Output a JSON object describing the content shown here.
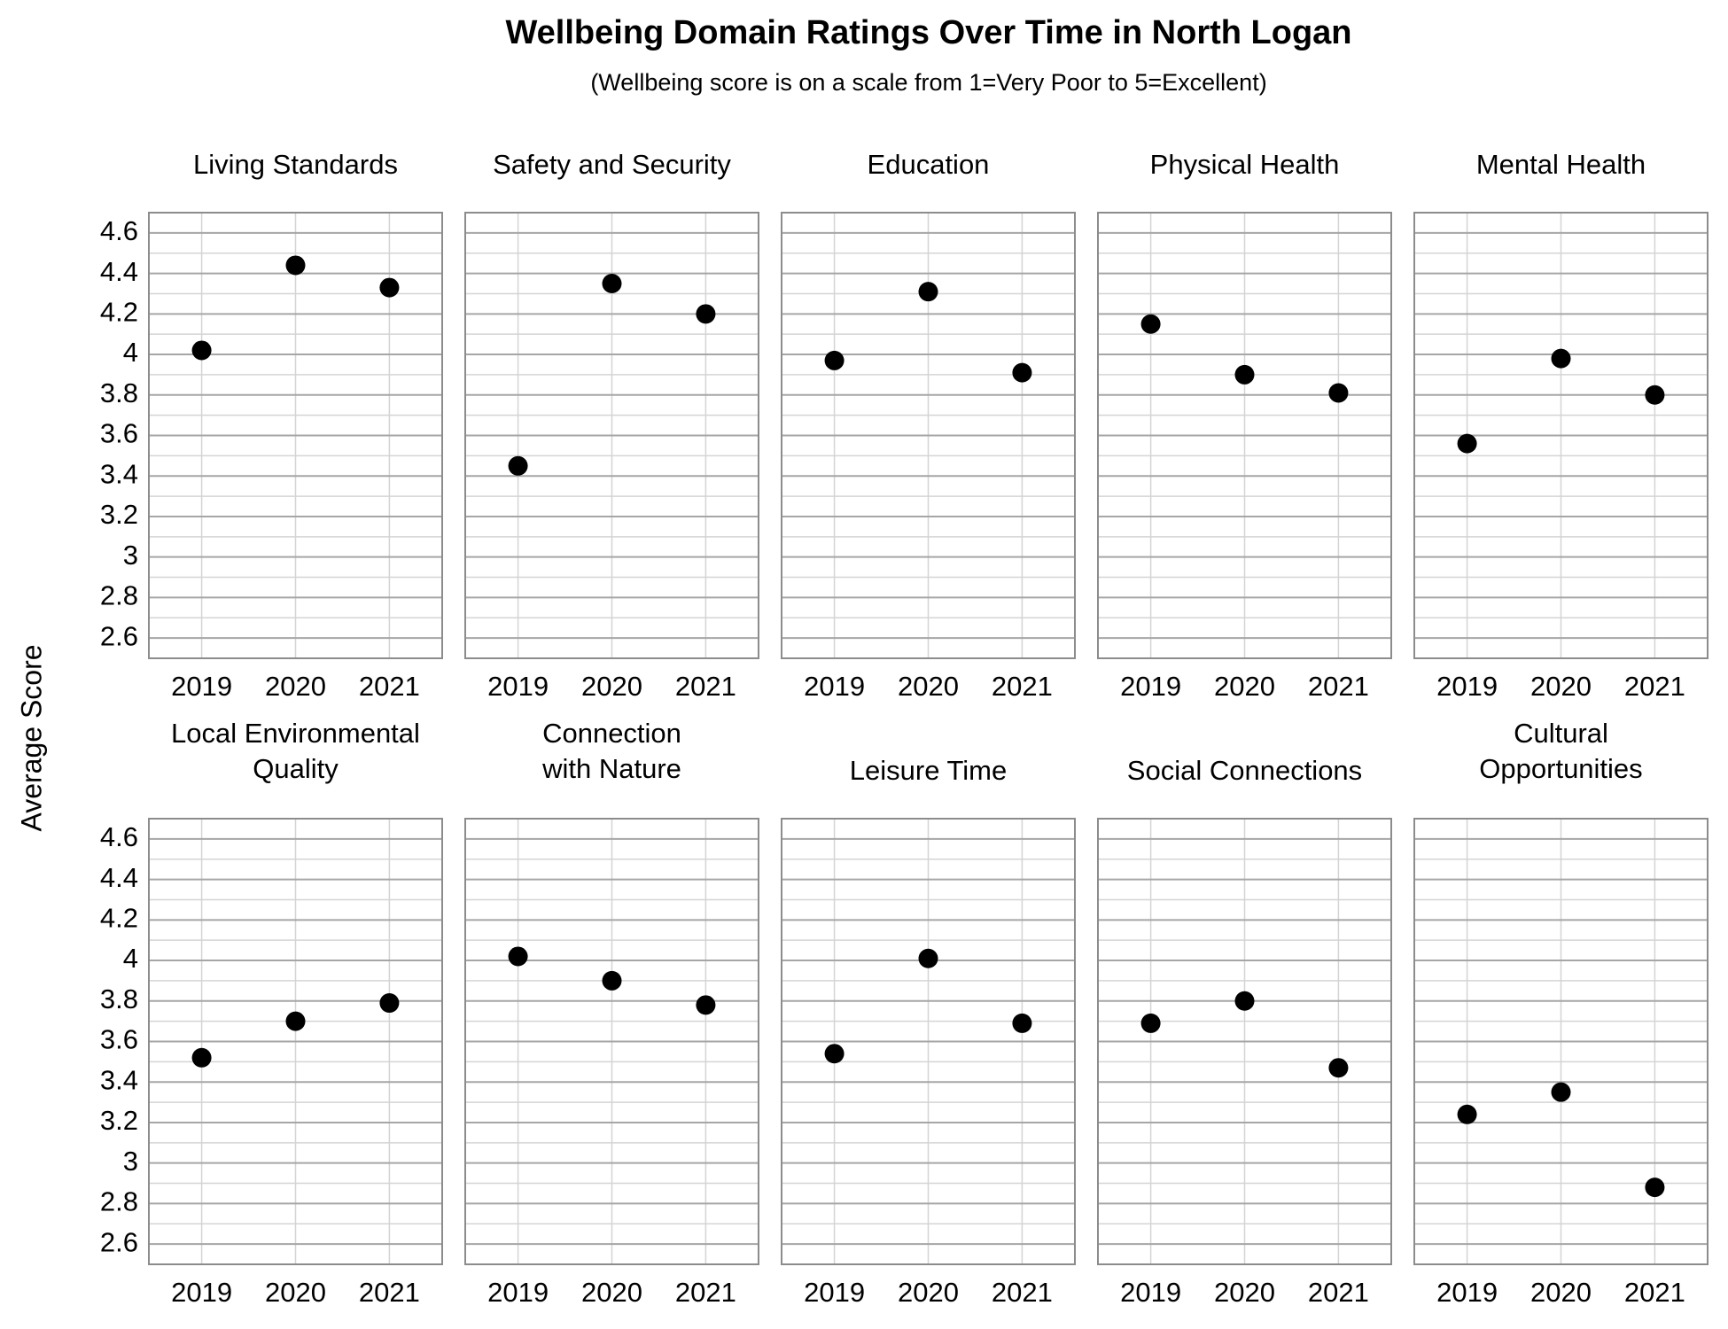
{
  "title": "Wellbeing Domain Ratings Over Time in North Logan",
  "subtitle": "(Wellbeing score is on a scale from 1=Very Poor to 5=Excellent)",
  "y_label": "Average Score",
  "chart_data": [
    {
      "type": "scatter",
      "title": [
        "Living Standards"
      ],
      "categories": [
        "2019",
        "2020",
        "2021"
      ],
      "values": [
        4.02,
        4.44,
        4.33
      ],
      "color": "#000000",
      "ylim": [
        2.5,
        4.7
      ],
      "yticks": [
        2.6,
        2.8,
        3.0,
        3.2,
        3.4,
        3.6,
        3.8,
        4.0,
        4.2,
        4.4,
        4.6
      ],
      "grid": true
    },
    {
      "type": "scatter",
      "title": [
        "Safety and Security"
      ],
      "categories": [
        "2019",
        "2020",
        "2021"
      ],
      "values": [
        3.45,
        4.35,
        4.2
      ],
      "color": "#000000",
      "ylim": [
        2.5,
        4.7
      ],
      "yticks": [
        2.6,
        2.8,
        3.0,
        3.2,
        3.4,
        3.6,
        3.8,
        4.0,
        4.2,
        4.4,
        4.6
      ],
      "grid": true
    },
    {
      "type": "scatter",
      "title": [
        "Education"
      ],
      "categories": [
        "2019",
        "2020",
        "2021"
      ],
      "values": [
        3.97,
        4.31,
        3.91
      ],
      "color": "#000000",
      "ylim": [
        2.5,
        4.7
      ],
      "yticks": [
        2.6,
        2.8,
        3.0,
        3.2,
        3.4,
        3.6,
        3.8,
        4.0,
        4.2,
        4.4,
        4.6
      ],
      "grid": true
    },
    {
      "type": "scatter",
      "title": [
        "Physical Health"
      ],
      "categories": [
        "2019",
        "2020",
        "2021"
      ],
      "values": [
        4.15,
        3.9,
        3.81
      ],
      "color": "#000000",
      "ylim": [
        2.5,
        4.7
      ],
      "yticks": [
        2.6,
        2.8,
        3.0,
        3.2,
        3.4,
        3.6,
        3.8,
        4.0,
        4.2,
        4.4,
        4.6
      ],
      "grid": true
    },
    {
      "type": "scatter",
      "title": [
        "Mental Health"
      ],
      "categories": [
        "2019",
        "2020",
        "2021"
      ],
      "values": [
        3.56,
        3.98,
        3.8
      ],
      "color": "#000000",
      "ylim": [
        2.5,
        4.7
      ],
      "yticks": [
        2.6,
        2.8,
        3.0,
        3.2,
        3.4,
        3.6,
        3.8,
        4.0,
        4.2,
        4.4,
        4.6
      ],
      "grid": true
    },
    {
      "type": "scatter",
      "title": [
        "Local Environmental",
        "Quality"
      ],
      "categories": [
        "2019",
        "2020",
        "2021"
      ],
      "values": [
        3.52,
        3.7,
        3.79
      ],
      "color": "#000000",
      "ylim": [
        2.5,
        4.7
      ],
      "yticks": [
        2.6,
        2.8,
        3.0,
        3.2,
        3.4,
        3.6,
        3.8,
        4.0,
        4.2,
        4.4,
        4.6
      ],
      "grid": true
    },
    {
      "type": "scatter",
      "title": [
        "Connection",
        "with Nature"
      ],
      "categories": [
        "2019",
        "2020",
        "2021"
      ],
      "values": [
        4.02,
        3.9,
        3.78
      ],
      "color": "#000000",
      "ylim": [
        2.5,
        4.7
      ],
      "yticks": [
        2.6,
        2.8,
        3.0,
        3.2,
        3.4,
        3.6,
        3.8,
        4.0,
        4.2,
        4.4,
        4.6
      ],
      "grid": true
    },
    {
      "type": "scatter",
      "title": [
        "Leisure Time"
      ],
      "categories": [
        "2019",
        "2020",
        "2021"
      ],
      "values": [
        3.54,
        4.01,
        3.69
      ],
      "color": "#000000",
      "ylim": [
        2.5,
        4.7
      ],
      "yticks": [
        2.6,
        2.8,
        3.0,
        3.2,
        3.4,
        3.6,
        3.8,
        4.0,
        4.2,
        4.4,
        4.6
      ],
      "grid": true
    },
    {
      "type": "scatter",
      "title": [
        "Social Connections"
      ],
      "categories": [
        "2019",
        "2020",
        "2021"
      ],
      "values": [
        3.69,
        3.8,
        3.47
      ],
      "color": "#000000",
      "ylim": [
        2.5,
        4.7
      ],
      "yticks": [
        2.6,
        2.8,
        3.0,
        3.2,
        3.4,
        3.6,
        3.8,
        4.0,
        4.2,
        4.4,
        4.6
      ],
      "grid": true
    },
    {
      "type": "scatter",
      "title": [
        "Cultural",
        "Opportunities"
      ],
      "categories": [
        "2019",
        "2020",
        "2021"
      ],
      "values": [
        3.24,
        3.35,
        2.88
      ],
      "color": "#000000",
      "ylim": [
        2.5,
        4.7
      ],
      "yticks": [
        2.6,
        2.8,
        3.0,
        3.2,
        3.4,
        3.6,
        3.8,
        4.0,
        4.2,
        4.4,
        4.6
      ],
      "grid": true
    }
  ]
}
